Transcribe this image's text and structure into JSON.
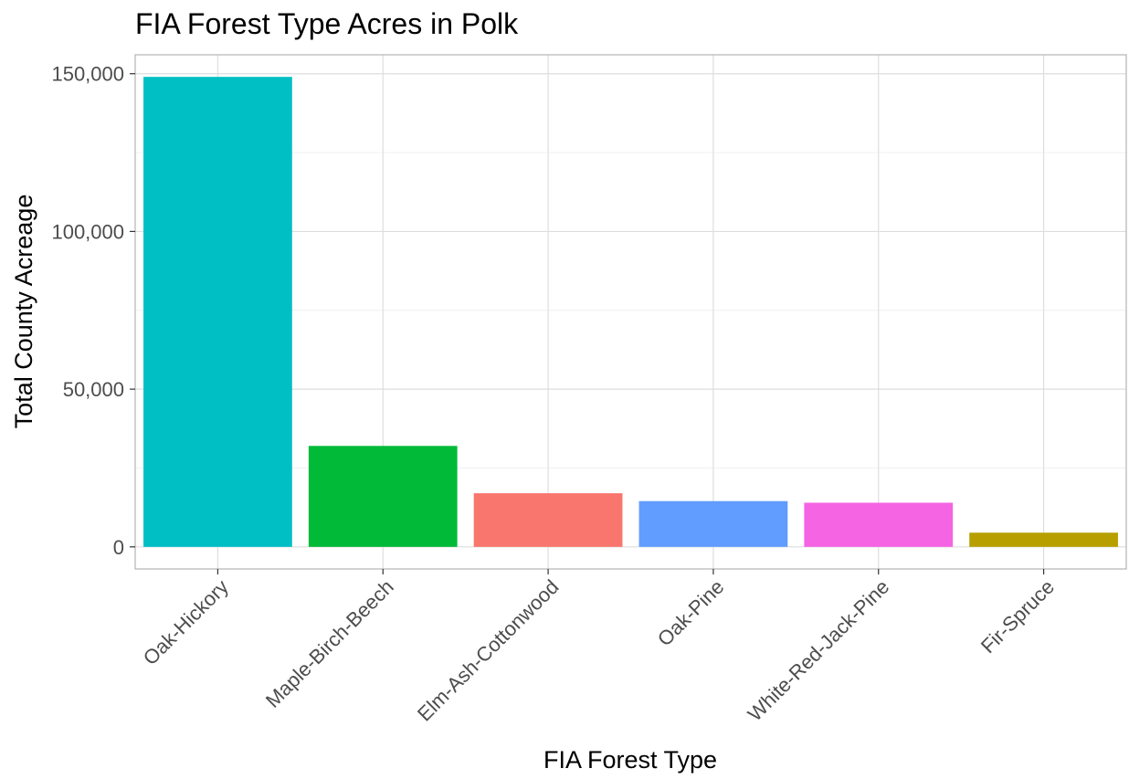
{
  "chart_data": {
    "type": "bar",
    "title": "FIA Forest Type Acres in Polk",
    "xlabel": "FIA Forest Type",
    "ylabel": "Total County Acreage",
    "categories": [
      "Oak-Hickory",
      "Maple-Birch-Beech",
      "Elm-Ash-Cottonwood",
      "Oak-Pine",
      "White-Red-Jack-Pine",
      "Fir-Spruce"
    ],
    "values": [
      149000,
      32000,
      17000,
      14500,
      14000,
      4500
    ],
    "colors": [
      "#00BFC4",
      "#00BA38",
      "#F8766D",
      "#619CFF",
      "#F564E3",
      "#B79F00"
    ],
    "ylim": [
      -7000,
      156000
    ],
    "yticks": [
      0,
      50000,
      100000,
      150000
    ],
    "ytick_labels": [
      "0",
      "50,000",
      "100,000",
      "150,000"
    ],
    "grid": true,
    "legend": "none"
  }
}
